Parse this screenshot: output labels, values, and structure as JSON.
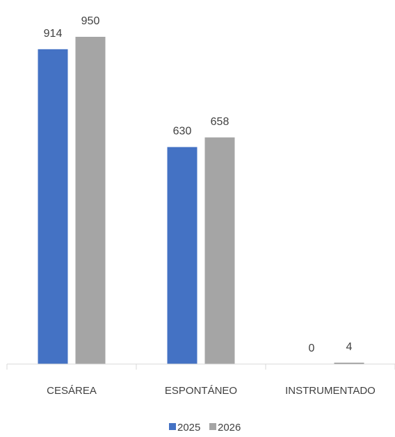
{
  "chart_data": {
    "type": "bar",
    "categories": [
      "CESÁREA",
      "ESPONTÁNEO",
      "INSTRUMENTADO"
    ],
    "series": [
      {
        "name": "2025",
        "values": [
          914,
          630,
          0
        ],
        "color": "#4472C4"
      },
      {
        "name": "2026",
        "values": [
          950,
          658,
          4
        ],
        "color": "#A5A5A5"
      }
    ],
    "data_labels": [
      [
        "914",
        "630",
        "0"
      ],
      [
        "950",
        "658",
        "4"
      ]
    ],
    "ylim": [
      0,
      1000
    ],
    "grid": false,
    "legend": "bottom-center"
  }
}
